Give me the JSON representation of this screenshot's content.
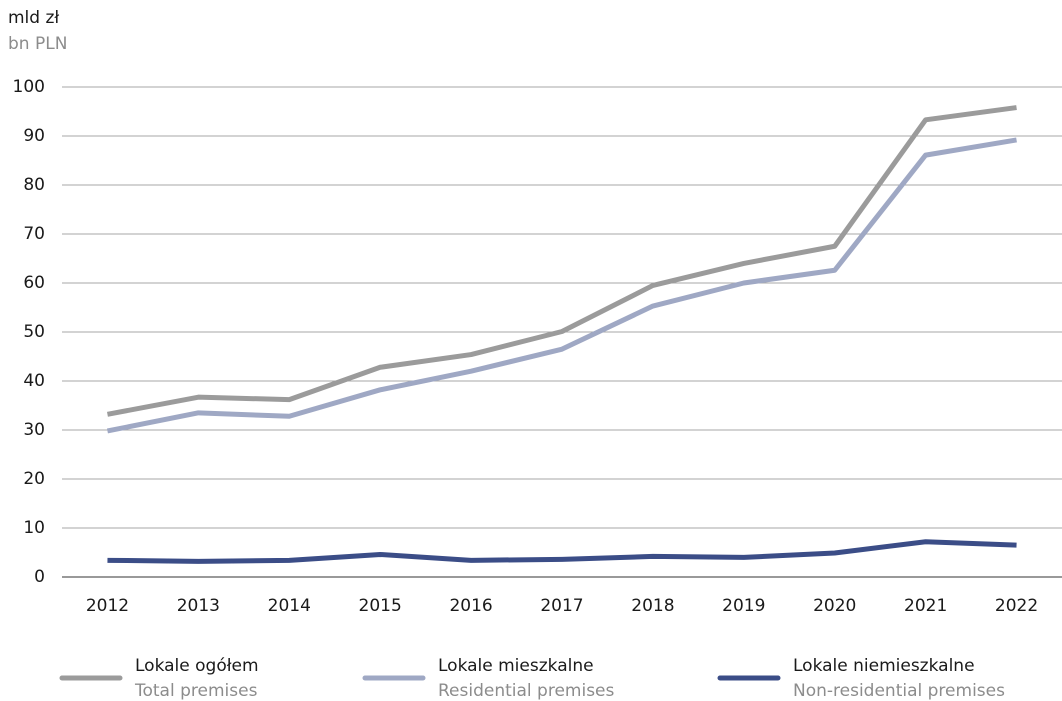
{
  "chart_data": {
    "type": "line",
    "unit_label": "mld zł",
    "unit_label_en": "bn PLN",
    "categories": [
      "2012",
      "2013",
      "2014",
      "2015",
      "2016",
      "2017",
      "2018",
      "2019",
      "2020",
      "2021",
      "2022"
    ],
    "series": [
      {
        "name": "Lokale ogółem",
        "name_en": "Total premises",
        "color": "#9b9b9b",
        "values": [
          33.2,
          36.7,
          36.2,
          42.8,
          45.4,
          50.1,
          59.5,
          64.0,
          67.5,
          93.3,
          95.8
        ]
      },
      {
        "name": "Lokale mieszkalne",
        "name_en": "Residential premises",
        "color": "#9fa8c4",
        "values": [
          29.8,
          33.5,
          32.8,
          38.2,
          42.0,
          46.5,
          55.3,
          60.0,
          62.6,
          86.1,
          89.2
        ]
      },
      {
        "name": "Lokale niemieszkalne",
        "name_en": "Non-residential premises",
        "color": "#3b4d87",
        "values": [
          3.4,
          3.2,
          3.4,
          4.6,
          3.4,
          3.6,
          4.2,
          4.0,
          4.9,
          7.2,
          6.5
        ]
      }
    ],
    "ylim": [
      0,
      100
    ],
    "yticks": [
      0,
      10,
      20,
      30,
      40,
      50,
      60,
      70,
      80,
      90,
      100
    ],
    "grid": true
  }
}
